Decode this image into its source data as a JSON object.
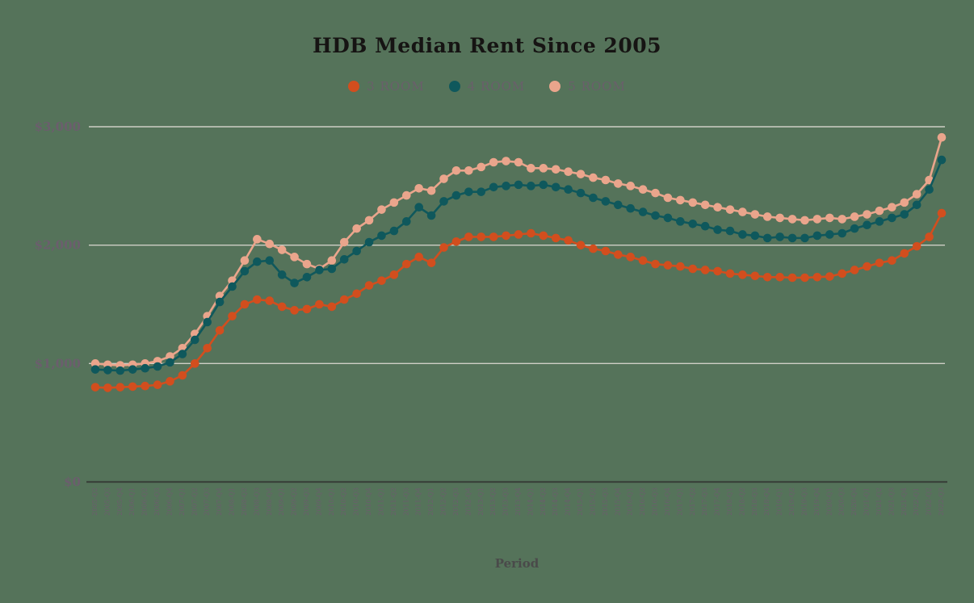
{
  "title": "HDB Median Rent Since 2005",
  "legend": [
    {
      "label": "3 ROOM",
      "color": "#d24e1e"
    },
    {
      "label": "4 ROOM",
      "color": "#0f585c"
    },
    {
      "label": "5 ROOM",
      "color": "#eaa58c"
    }
  ],
  "axes": {
    "x_title": "Period",
    "y_tick_labels": [
      "$0",
      "$1,000",
      "$2,000",
      "$3,000"
    ]
  },
  "colors": {
    "background": "#55735a",
    "gridline": "#e5dfd8",
    "axis_line": "#3a423a",
    "tick_label": "#6b5e6d",
    "x_axis_title": "#4a4a4a",
    "title": "#161413"
  },
  "chart_data": {
    "type": "line",
    "title": "HDB Median Rent Since 2005",
    "xlabel": "Period",
    "ylabel": "",
    "ylim": [
      0,
      3000
    ],
    "y_tick_values": [
      0,
      1000,
      2000,
      3000
    ],
    "grid": "horizontal",
    "legend_position": "top",
    "categories": [
      "2005-Q2",
      "2005-Q3",
      "2005-Q4",
      "2006-Q1",
      "2006-Q2",
      "2006-Q3",
      "2006-Q4",
      "2007-Q1",
      "2007-Q2",
      "2007-Q3",
      "2007-Q4",
      "2008-Q1",
      "2008-Q2",
      "2008-Q3",
      "2008-Q4",
      "2009-Q1",
      "2009-Q2",
      "2009-Q3",
      "2009-Q4",
      "2010-Q1",
      "2010-Q2",
      "2010-Q3",
      "2010-Q4",
      "2011-Q1",
      "2011-Q2",
      "2011-Q3",
      "2011-Q4",
      "2012-Q1",
      "2012-Q2",
      "2012-Q3",
      "2012-Q4",
      "2013-Q1",
      "2013-Q2",
      "2013-Q3",
      "2013-Q4",
      "2014-Q1",
      "2014-Q2",
      "2014-Q3",
      "2014-Q4",
      "2015-Q1",
      "2015-Q2",
      "2015-Q3",
      "2015-Q4",
      "2016-Q1",
      "2016-Q2",
      "2016-Q3",
      "2016-Q4",
      "2017-Q1",
      "2017-Q2",
      "2017-Q3",
      "2017-Q4",
      "2018-Q1",
      "2018-Q2",
      "2018-Q3",
      "2018-Q4",
      "2019-Q1",
      "2019-Q2",
      "2019-Q3",
      "2019-Q4",
      "2020-Q1",
      "2020-Q3",
      "2020-Q4",
      "2021-Q1",
      "2021-Q2",
      "2021-Q3",
      "2021-Q4",
      "2022-Q1",
      "2022-Q2",
      "2022-Q3"
    ],
    "series": [
      {
        "name": "3 ROOM",
        "color": "#d24e1e",
        "values": [
          800,
          795,
          800,
          805,
          810,
          820,
          850,
          900,
          1000,
          1130,
          1280,
          1400,
          1500,
          1540,
          1530,
          1480,
          1450,
          1460,
          1500,
          1480,
          1540,
          1590,
          1660,
          1700,
          1750,
          1840,
          1900,
          1850,
          1980,
          2030,
          2070,
          2070,
          2070,
          2080,
          2090,
          2100,
          2080,
          2060,
          2040,
          2000,
          1970,
          1950,
          1920,
          1900,
          1870,
          1840,
          1830,
          1820,
          1800,
          1790,
          1780,
          1760,
          1750,
          1740,
          1730,
          1730,
          1725,
          1725,
          1730,
          1735,
          1760,
          1790,
          1820,
          1850,
          1870,
          1930,
          1990,
          2070,
          2270
        ]
      },
      {
        "name": "4 ROOM",
        "color": "#0f585c",
        "values": [
          950,
          945,
          940,
          950,
          960,
          975,
          1010,
          1080,
          1200,
          1350,
          1520,
          1650,
          1780,
          1860,
          1870,
          1750,
          1680,
          1730,
          1790,
          1800,
          1880,
          1950,
          2025,
          2080,
          2120,
          2200,
          2320,
          2250,
          2370,
          2420,
          2450,
          2450,
          2490,
          2500,
          2510,
          2500,
          2510,
          2490,
          2470,
          2440,
          2400,
          2370,
          2340,
          2310,
          2280,
          2250,
          2230,
          2200,
          2180,
          2160,
          2130,
          2120,
          2090,
          2080,
          2060,
          2070,
          2060,
          2060,
          2080,
          2090,
          2100,
          2140,
          2170,
          2200,
          2230,
          2260,
          2340,
          2470,
          2720
        ]
      },
      {
        "name": "5 ROOM",
        "color": "#eaa58c",
        "values": [
          1000,
          990,
          985,
          990,
          1000,
          1020,
          1060,
          1130,
          1250,
          1400,
          1570,
          1700,
          1870,
          2050,
          2010,
          1960,
          1900,
          1840,
          1800,
          1870,
          2025,
          2140,
          2210,
          2300,
          2360,
          2420,
          2480,
          2460,
          2560,
          2630,
          2630,
          2660,
          2700,
          2710,
          2700,
          2650,
          2650,
          2640,
          2620,
          2600,
          2570,
          2550,
          2520,
          2500,
          2470,
          2440,
          2400,
          2380,
          2360,
          2340,
          2320,
          2300,
          2280,
          2260,
          2240,
          2230,
          2220,
          2210,
          2220,
          2230,
          2220,
          2240,
          2260,
          2290,
          2320,
          2360,
          2430,
          2550,
          2910
        ]
      }
    ]
  }
}
